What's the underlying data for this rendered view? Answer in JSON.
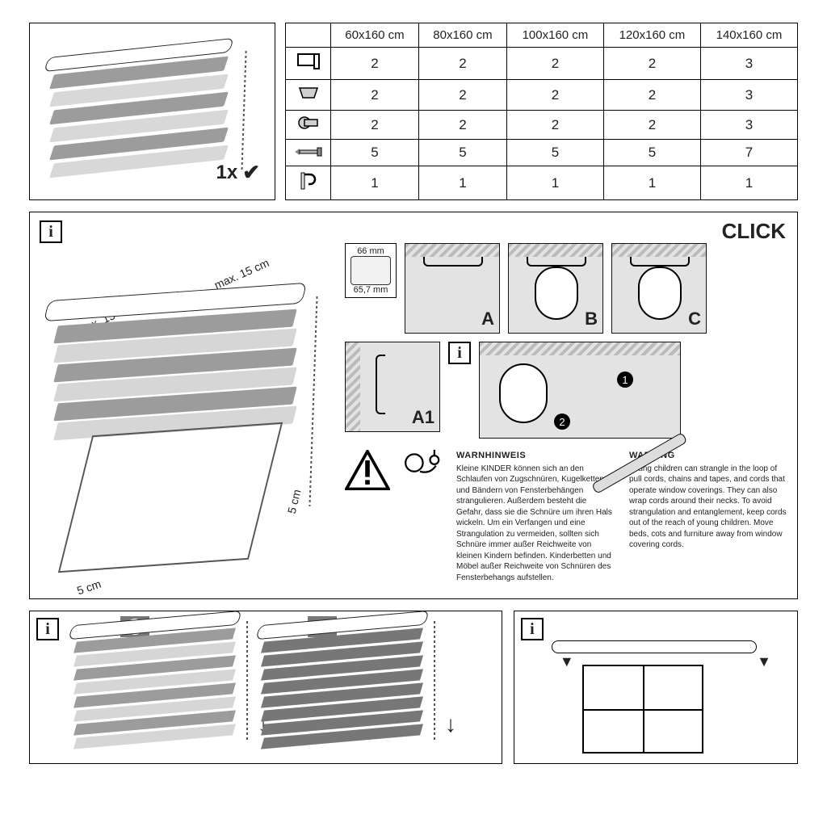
{
  "product": {
    "qty_label": "1x",
    "check": "✔"
  },
  "parts_table": {
    "sizes": [
      "60x160 cm",
      "80x160 cm",
      "100x160 cm",
      "120x160 cm",
      "140x160 cm"
    ],
    "rows": [
      {
        "icon": "bracket",
        "values": [
          "2",
          "2",
          "2",
          "2",
          "3"
        ]
      },
      {
        "icon": "clip",
        "values": [
          "2",
          "2",
          "2",
          "2",
          "3"
        ]
      },
      {
        "icon": "plug",
        "values": [
          "2",
          "2",
          "2",
          "2",
          "3"
        ]
      },
      {
        "icon": "screw",
        "values": [
          "5",
          "5",
          "5",
          "5",
          "7"
        ]
      },
      {
        "icon": "cord-hook",
        "values": [
          "1",
          "1",
          "1",
          "1",
          "1"
        ]
      }
    ]
  },
  "instructions": {
    "click_title": "CLICK",
    "max_dist": "max. 15 cm",
    "profile": {
      "height": "66 mm",
      "width": "65,7 mm"
    },
    "window_margin": "5 cm",
    "steps": {
      "A": "A",
      "B": "B",
      "C": "C",
      "A1": "A1",
      "num1": "1",
      "num2": "2"
    }
  },
  "warning": {
    "de_title": "WARNHINWEIS",
    "de_body": "Kleine KINDER können sich an den Schlaufen von Zugschnüren, Kugelketten und Bändern von Fensterbehängen strangulieren. Außerdem besteht die Gefahr, dass sie die Schnüre um ihren Hals wickeln. Um ein Verfangen und eine Strangulation zu vermeiden, sollten sich Schnüre immer außer Reichweite von kleinen Kindern befinden. Kinderbetten und Möbel außer Reichweite von Schnüren des Fensterbehangs aufstellen.",
    "en_title": "WARNING",
    "en_body": "Young children can strangle in the loop of pull cords, chains and tapes, and cords that operate window coverings. They can also wrap cords around their necks. To avoid strangulation and entanglement, keep cords out of the reach of young children. Move beds, cots and furniture away from window covering cords."
  },
  "colors": {
    "line": "#000000",
    "grey_dark": "#9c9c9c",
    "grey_light": "#d6d6d6",
    "cell_bg": "#e3e3e3"
  }
}
